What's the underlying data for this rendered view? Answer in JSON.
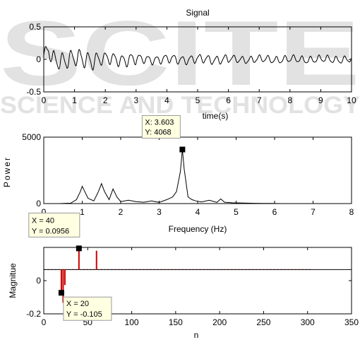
{
  "watermark": {
    "big": "SCITE",
    "small": "SCIENCE AND TECHNOLOGY"
  },
  "chart_data": [
    {
      "type": "line",
      "title": "Signal",
      "xlabel": "time(s)",
      "ylabel": "",
      "xlim": [
        0,
        10
      ],
      "ylim": [
        -0.5,
        0.5
      ],
      "xticks": [
        "0",
        "1",
        "2",
        "3",
        "4",
        "5",
        "6",
        "7",
        "8",
        "9",
        "10"
      ],
      "yticks": [
        "0.5",
        "0",
        "-0.5"
      ],
      "series": [
        {
          "color": "#000000",
          "segments": [
            {
              "t0": 0.0,
              "t1": 1.8,
              "freq": 3.6,
              "amp": 0.12
            },
            {
              "t0": 1.8,
              "t1": 3.0,
              "freq": 3.6,
              "amp": 0.085
            },
            {
              "t0": 3.0,
              "t1": 6.0,
              "freq": 3.6,
              "amp": 0.06
            },
            {
              "t0": 6.0,
              "t1": 10.0,
              "freq": 3.6,
              "amp": 0.05
            }
          ],
          "peak": {
            "x": 0.15,
            "y": 0.28
          }
        }
      ]
    },
    {
      "type": "line",
      "title": "",
      "xlabel": "Frequency (Hz)",
      "ylabel": "Power",
      "xlim": [
        0,
        8
      ],
      "ylim": [
        0,
        5000
      ],
      "xticks": [
        "0",
        "1",
        "2",
        "3",
        "4",
        "5",
        "6",
        "7",
        "8"
      ],
      "yticks": [
        "5000",
        "0"
      ],
      "series": [
        {
          "color": "#000000",
          "x": [
            0.0,
            0.4,
            0.7,
            0.85,
            0.95,
            1.0,
            1.05,
            1.15,
            1.3,
            1.42,
            1.5,
            1.58,
            1.7,
            1.8,
            1.9,
            2.0,
            2.2,
            2.4,
            2.6,
            2.8,
            3.0,
            3.2,
            3.35,
            3.45,
            3.55,
            3.603,
            3.65,
            3.75,
            3.85,
            3.95,
            4.1,
            4.3,
            4.5,
            4.6,
            4.7,
            4.9,
            5.1,
            5.3,
            5.5,
            5.7,
            5.9,
            6.2,
            6.5,
            7.0,
            7.5,
            8.0
          ],
          "y": [
            0,
            0,
            30,
            300,
            900,
            1300,
            1000,
            400,
            200,
            900,
            1500,
            900,
            300,
            1100,
            500,
            150,
            250,
            150,
            100,
            200,
            90,
            300,
            500,
            900,
            2400,
            4068,
            2600,
            500,
            300,
            200,
            120,
            250,
            90,
            350,
            100,
            60,
            50,
            30,
            20,
            10,
            10,
            0,
            0,
            0,
            0,
            0
          ]
        }
      ],
      "tooltip": {
        "x": 3.603,
        "y": 4068,
        "line1": "X: 3.603",
        "line2": "Y: 4068"
      }
    },
    {
      "type": "stem",
      "title": "",
      "xlabel": "n",
      "ylabel": "Magnitue",
      "xlim": [
        0,
        350
      ],
      "ylim": [
        -0.2,
        0.1
      ],
      "xticks": [
        "0",
        "50",
        "100",
        "150",
        "200",
        "250",
        "300",
        "350"
      ],
      "yticks": [
        "0",
        "-0.2"
      ],
      "series": [
        {
          "color": "#cc0000",
          "x": [
            20,
            22,
            24,
            40,
            60
          ],
          "y": [
            -0.105,
            -0.15,
            -0.07,
            0.0956,
            0.085
          ]
        }
      ],
      "baseline": {
        "x_end": 305,
        "color": "#cc0000"
      },
      "tooltips": [
        {
          "x": 40,
          "y": 0.0956,
          "line1": "X = 40",
          "line2": "Y = 0.0956"
        },
        {
          "x": 20,
          "y": -0.105,
          "line1": "X = 20",
          "line2": "Y = -0.105"
        }
      ]
    }
  ]
}
